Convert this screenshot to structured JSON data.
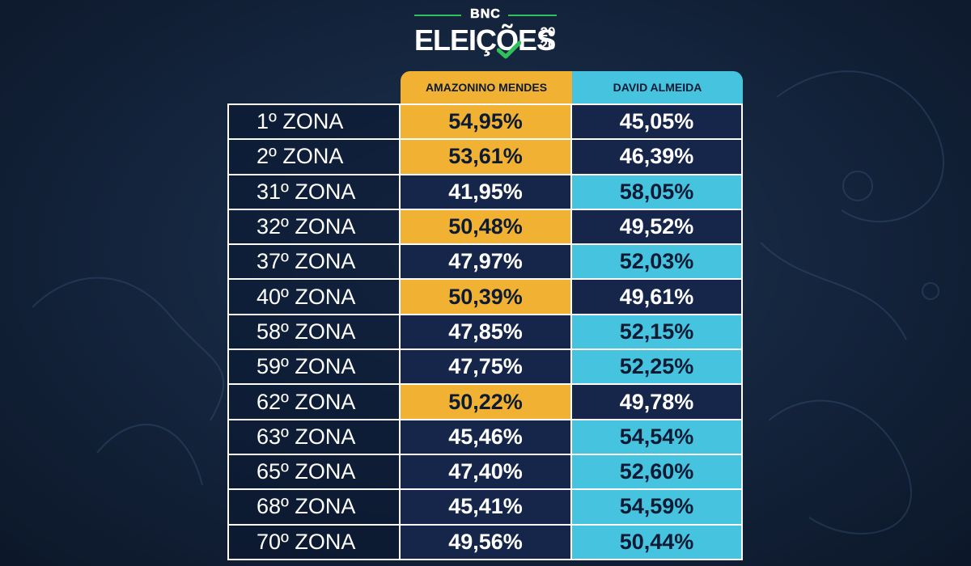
{
  "logo": {
    "brand": "BNC",
    "title": "ELEIÇÕES",
    "year_top": "20",
    "year_bottom": "20"
  },
  "table": {
    "headers": [
      "AMAZONINO MENDES",
      "DAVID ALMEIDA"
    ],
    "rows": [
      {
        "zone": "1º ZONA",
        "amazonino": "54,95%",
        "david": "45,05%",
        "winner": "amazonino"
      },
      {
        "zone": "2º ZONA",
        "amazonino": "53,61%",
        "david": "46,39%",
        "winner": "amazonino"
      },
      {
        "zone": "31º ZONA",
        "amazonino": "41,95%",
        "david": "58,05%",
        "winner": "david"
      },
      {
        "zone": "32º ZONA",
        "amazonino": "50,48%",
        "david": "49,52%",
        "winner": "amazonino"
      },
      {
        "zone": "37º ZONA",
        "amazonino": "47,97%",
        "david": "52,03%",
        "winner": "david"
      },
      {
        "zone": "40º ZONA",
        "amazonino": "50,39%",
        "david": "49,61%",
        "winner": "amazonino"
      },
      {
        "zone": "58º ZONA",
        "amazonino": "47,85%",
        "david": "52,15%",
        "winner": "david"
      },
      {
        "zone": "59º ZONA",
        "amazonino": "47,75%",
        "david": "52,25%",
        "winner": "david"
      },
      {
        "zone": "62º ZONA",
        "amazonino": "50,22%",
        "david": "49,78%",
        "winner": "amazonino"
      },
      {
        "zone": "63º ZONA",
        "amazonino": "45,46%",
        "david": "54,54%",
        "winner": "david"
      },
      {
        "zone": "65º ZONA",
        "amazonino": "47,40%",
        "david": "52,60%",
        "winner": "david"
      },
      {
        "zone": "68º ZONA",
        "amazonino": "45,41%",
        "david": "54,59%",
        "winner": "david"
      },
      {
        "zone": "70º ZONA",
        "amazonino": "49,56%",
        "david": "50,44%",
        "winner": "david"
      }
    ]
  },
  "colors": {
    "amazonino": "#f1b234",
    "david": "#45c3df",
    "cell_dark": "#15264a",
    "logo_green": "#2fc15a"
  }
}
